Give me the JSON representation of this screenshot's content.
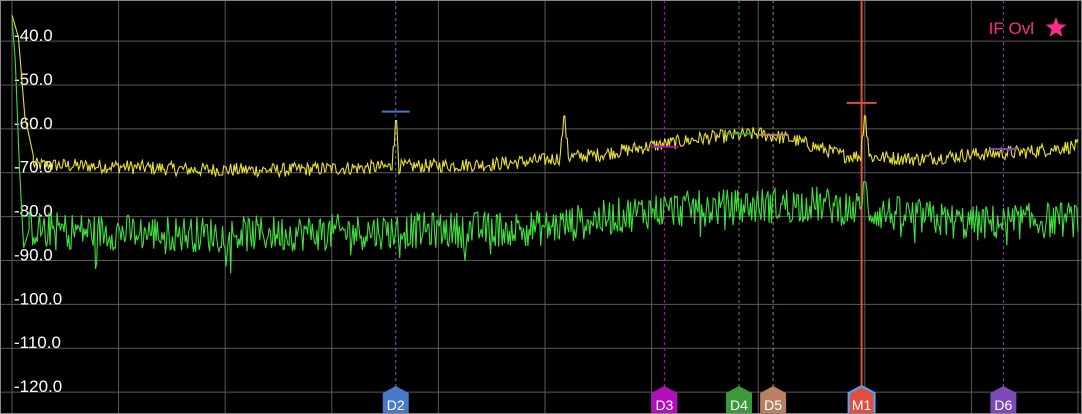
{
  "chart_data": {
    "type": "line",
    "title": "",
    "xlabel": "",
    "ylabel": "",
    "ylim": [
      -125.0,
      -32.0
    ],
    "y_ticks": [
      "-40.0",
      "-50.0",
      "-60.0",
      "-70.0",
      "-80.0",
      "-90.0",
      "-100.0",
      "-110.0",
      "-120.0"
    ],
    "y_tick_values": [
      -40,
      -50,
      -60,
      -70,
      -80,
      -90,
      -100,
      -110,
      -120
    ],
    "grid": true,
    "x_divisions": 10,
    "series": [
      {
        "color": "#e8e030",
        "baseline": [
          [
            0,
            -69
          ],
          [
            0.1,
            -69.5
          ],
          [
            0.17,
            -70.2
          ],
          [
            0.25,
            -70.3
          ],
          [
            0.35,
            -69.6
          ],
          [
            0.45,
            -69.0
          ],
          [
            0.5,
            -68.0
          ],
          [
            0.515,
            -67.5
          ],
          [
            0.55,
            -66.8
          ],
          [
            0.6,
            -64.8
          ],
          [
            0.65,
            -63.0
          ],
          [
            0.7,
            -62.0
          ],
          [
            0.73,
            -63.2
          ],
          [
            0.78,
            -67.0
          ],
          [
            0.85,
            -67.8
          ],
          [
            0.9,
            -66.8
          ],
          [
            0.95,
            -66.2
          ],
          [
            1.0,
            -64.8
          ]
        ],
        "noise": 1.6,
        "spikes": [
          [
            0.36,
            -59.0
          ],
          [
            0.518,
            -58.0
          ],
          [
            0.8,
            -58.0
          ]
        ],
        "start": [
          [
            0,
            -35
          ],
          [
            0.006,
            -40
          ],
          [
            0.012,
            -58
          ],
          [
            0.02,
            -67
          ]
        ]
      },
      {
        "color": "#3ee03e",
        "baseline": [
          [
            0,
            -83.5
          ],
          [
            0.1,
            -84.5
          ],
          [
            0.2,
            -85.0
          ],
          [
            0.3,
            -84.5
          ],
          [
            0.4,
            -84.0
          ],
          [
            0.5,
            -83.5
          ],
          [
            0.6,
            -79.5
          ],
          [
            0.7,
            -78.5
          ],
          [
            0.75,
            -78.0
          ],
          [
            0.8,
            -79.5
          ],
          [
            0.9,
            -82.5
          ],
          [
            1.0,
            -81.5
          ]
        ],
        "noise": 4.2,
        "spikes": [
          [
            0.8,
            -73.0
          ]
        ],
        "start": [
          [
            0,
            -36
          ],
          [
            0.003,
            -45
          ],
          [
            0.007,
            -70
          ],
          [
            0.011,
            -88
          ],
          [
            0.016,
            -84
          ]
        ]
      }
    ],
    "markers": [
      {
        "label": "D2",
        "x": 0.36,
        "level": -57.0,
        "color": "#4a78c8",
        "line": "dashed"
      },
      {
        "label": "D3",
        "x": 0.612,
        "level": -65.0,
        "color": "#b010b8",
        "line": "dashed"
      },
      {
        "label": "D4",
        "x": 0.682,
        "level": -62.0,
        "color": "#3c9a3c",
        "line": "dashed"
      },
      {
        "label": "D5",
        "x": 0.714,
        "level": -62.3,
        "color": "#b88060",
        "line": "dashed"
      },
      {
        "label": "M1",
        "x": 0.797,
        "level": -55.0,
        "color": "#e05040",
        "line": "solid"
      },
      {
        "label": "D6",
        "x": 0.93,
        "level": -65.5,
        "color": "#7a4ab8",
        "line": "dashed"
      }
    ],
    "annotation": {
      "text": "IF Ovl",
      "color": "#ff2a90",
      "icon": "star-icon"
    }
  }
}
